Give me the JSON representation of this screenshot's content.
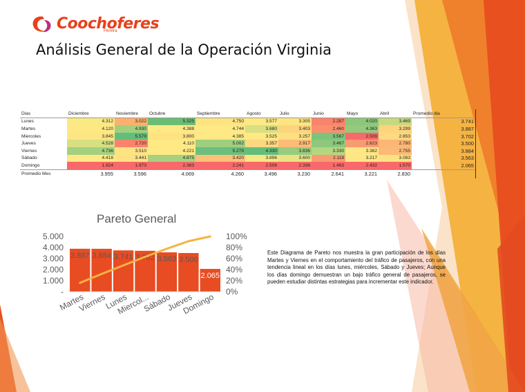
{
  "logo": {
    "name": "Coochoferes",
    "sub": "Pereira"
  },
  "title": "Análisis General de la Operación Virginia",
  "table": {
    "headers": [
      "Dias",
      "Diciembre",
      "Noviembre",
      "Octubre",
      "Septiembre",
      "Agosto",
      "Julio",
      "Junio",
      "Mayo",
      "Abril",
      "Promedio dia"
    ],
    "rows": [
      {
        "day": "Lunes",
        "values": [
          "4.312",
          "3.022",
          "5.325",
          "4.750",
          "3.577",
          "3.305",
          "2.287",
          "4.020",
          "3.469"
        ],
        "colors": [
          "#fbe983",
          "#fbb06d",
          "#6bbd74",
          "#fde482",
          "#fee985",
          "#fee583",
          "#f9836b",
          "#8cc77c",
          "#c6d980"
        ],
        "avg": "3.741"
      },
      {
        "day": "Martes",
        "values": [
          "4.120",
          "4.930",
          "4.388",
          "4.744",
          "3.680",
          "3.403",
          "2.460",
          "4.363",
          "3.299"
        ],
        "colors": [
          "#fde984",
          "#a2cf7e",
          "#fee985",
          "#fee985",
          "#d9df82",
          "#fdd47e",
          "#fa8f6e",
          "#93ca7c",
          "#fdd37e"
        ],
        "avg": "3.887"
      },
      {
        "day": "Miercoles",
        "values": [
          "3.845",
          "5.579",
          "3.800",
          "4.385",
          "3.525",
          "3.257",
          "3.567",
          "2.509",
          "2.853"
        ],
        "colors": [
          "#fee583",
          "#63be7b",
          "#fee383",
          "#fee985",
          "#fee985",
          "#fddf81",
          "#7dc47b",
          "#f8696b",
          "#fdd980"
        ],
        "avg": "3.702"
      },
      {
        "day": "Jueves",
        "values": [
          "4.528",
          "2.720",
          "4.110",
          "5.002",
          "3.357",
          "2.917",
          "3.467",
          "2.823",
          "2.780"
        ],
        "colors": [
          "#d6df81",
          "#f9846b",
          "#fee985",
          "#9fce7f",
          "#fdd881",
          "#fcbb76",
          "#8dc87c",
          "#fa9a71",
          "#fcb676"
        ],
        "avg": "3.500"
      },
      {
        "day": "Viernes",
        "values": [
          "4.736",
          "3.510",
          "4.221",
          "5.279",
          "4.330",
          "3.836",
          "3.330",
          "3.382",
          "2.755"
        ],
        "colors": [
          "#a4d07f",
          "#fee384",
          "#fee984",
          "#6bbe7b",
          "#63be7b",
          "#98cc7e",
          "#b5d67f",
          "#fee784",
          "#fcba76"
        ],
        "avg": "3.884"
      },
      {
        "day": "Sábado",
        "values": [
          "4.418",
          "3.441",
          "4.875",
          "3.420",
          "3.896",
          "3.600",
          "2.118",
          "3.217",
          "3.083"
        ],
        "colors": [
          "#fee985",
          "#fde282",
          "#a7d17f",
          "#fcc078",
          "#f7e785",
          "#eae384",
          "#fa9a71",
          "#fee685",
          "#fde283"
        ],
        "avg": "3.563"
      },
      {
        "day": "Domingo",
        "values": [
          "1.924",
          "1.973",
          "2.363",
          "2.241",
          "2.506",
          "2.336",
          "1.463",
          "2.432",
          "1.570"
        ],
        "colors": [
          "#f8696b",
          "#f8696b",
          "#f8696b",
          "#f8696b",
          "#f8696b",
          "#f8696b",
          "#f8696b",
          "#f8696b",
          "#f8696b"
        ],
        "avg": "2.065"
      }
    ],
    "footer": {
      "label": "Promedio Mes",
      "values": [
        "3.955",
        "3.596",
        "4.069",
        "4.260",
        "3.496",
        "3.230",
        "2.641",
        "3.221",
        "2.830"
      ]
    }
  },
  "chart_data": {
    "type": "bar",
    "title": "Pareto General",
    "categories": [
      "Martes",
      "Viernes",
      "Lunes",
      "Miercol...",
      "Sábado",
      "Jueves",
      "Domingo"
    ],
    "values": [
      3887,
      3884,
      3741,
      3702,
      3563,
      3500,
      2065
    ],
    "value_labels": [
      "3.887",
      "3.884",
      "3.741",
      "3.702",
      "3.563",
      "3.500",
      "2.065"
    ],
    "cumulative_pct": [
      16.1,
      32.2,
      47.7,
      63.1,
      77.8,
      91.4,
      100
    ],
    "y_ticks": [
      "-",
      "1.000",
      "2.000",
      "3.000",
      "4.000",
      "5.000"
    ],
    "y_range": [
      0,
      5000
    ],
    "y2_ticks": [
      "0%",
      "20%",
      "40%",
      "60%",
      "80%",
      "100%"
    ],
    "y2_range": [
      0,
      100
    ],
    "colors": {
      "bar": "#e84c22",
      "line": "#f5b341"
    },
    "grid": false,
    "legend": "none"
  },
  "description": "Este Diagrama de Pareto nos muestra la gran participación de los días Martes y Viernes en el comportamiento del tráfico de pasajeros, con una tendencia lineal en los días lunes, miércoles, Sábado y Jueves; Aunque los días domingo demuestran un bajo tráfico general de pasajeros, se pueden estudiar distintas estrategias para incrementar este indicador.",
  "theme": {
    "accent": "#e8401c",
    "orange": "#f0a030",
    "red": "#e84c22"
  }
}
